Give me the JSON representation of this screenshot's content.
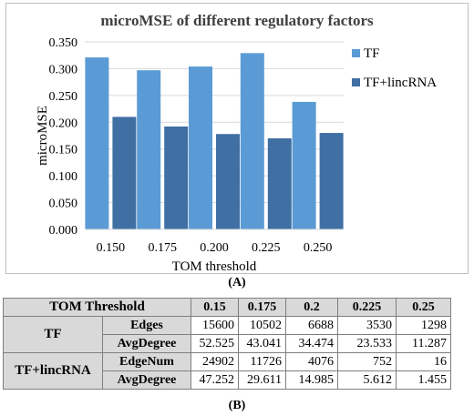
{
  "chart_data": {
    "type": "bar",
    "title": "microMSE of different regulatory factors",
    "xlabel": "TOM threshold",
    "ylabel": "microMSE",
    "categories": [
      "0.150",
      "0.175",
      "0.200",
      "0.225",
      "0.250"
    ],
    "ylim": [
      0,
      0.35
    ],
    "yticks": [
      "0.000",
      "0.050",
      "0.100",
      "0.150",
      "0.200",
      "0.250",
      "0.300",
      "0.350"
    ],
    "grid": true,
    "legend_position": "right",
    "series": [
      {
        "name": "TF",
        "values": [
          0.321,
          0.297,
          0.304,
          0.329,
          0.238
        ],
        "color": "#5b9bd5"
      },
      {
        "name": "TF+lincRNA",
        "values": [
          0.21,
          0.192,
          0.178,
          0.17,
          0.18
        ],
        "color": "#3f6fa3"
      }
    ]
  },
  "panel_a_label": "(A)",
  "panel_b_label": "(B)",
  "table": {
    "header": [
      "TOM Threshold",
      "0.15",
      "0.175",
      "0.2",
      "0.225",
      "0.25"
    ],
    "groups": [
      {
        "name": "TF",
        "rows": [
          {
            "metric": "Edges",
            "values": [
              "15600",
              "10502",
              "6688",
              "3530",
              "1298"
            ]
          },
          {
            "metric": "AvgDegree",
            "values": [
              "52.525",
              "43.041",
              "34.474",
              "23.533",
              "11.287"
            ]
          }
        ]
      },
      {
        "name": "TF+lincRNA",
        "rows": [
          {
            "metric": "EdgeNum",
            "values": [
              "24902",
              "11726",
              "4076",
              "752",
              "16"
            ]
          },
          {
            "metric": "AvgDegree",
            "values": [
              "47.252",
              "29.611",
              "14.985",
              "5.612",
              "1.455"
            ]
          }
        ]
      }
    ]
  }
}
